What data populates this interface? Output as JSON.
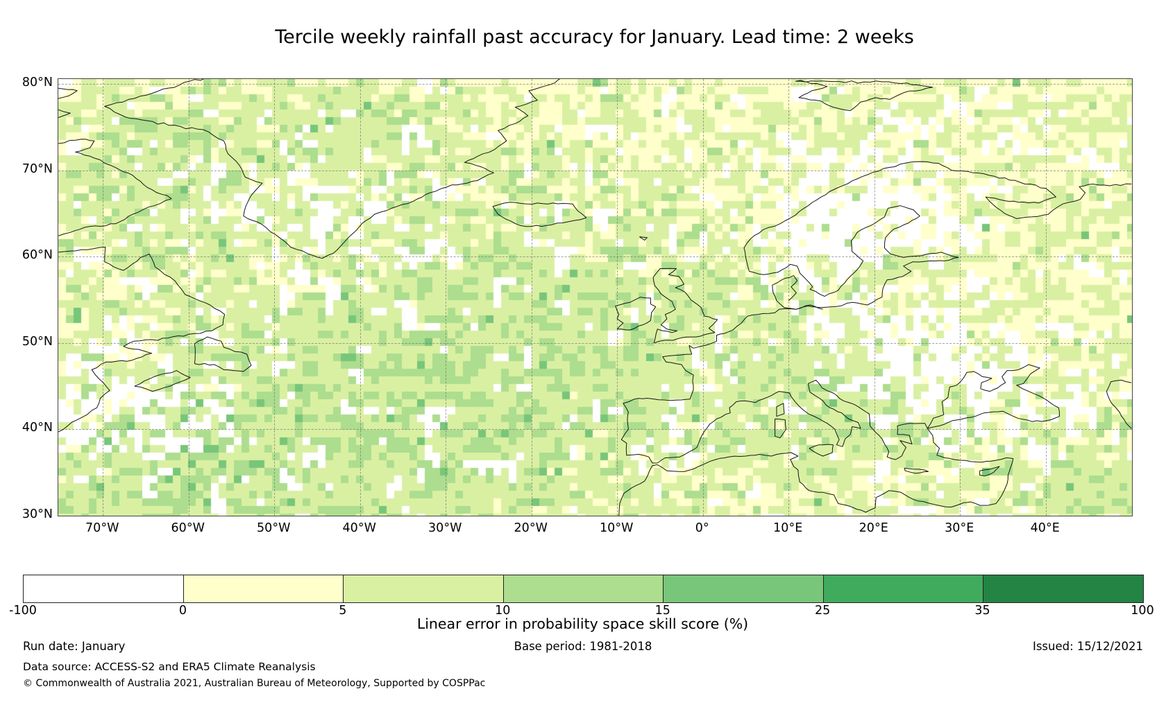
{
  "title": "Tercile weekly rainfall past accuracy for January. Lead time: 2 weeks",
  "map": {
    "lat_labels": [
      "80°N",
      "70°N",
      "60°N",
      "50°N",
      "40°N",
      "30°N"
    ],
    "lon_labels": [
      "70°W",
      "60°W",
      "50°W",
      "40°W",
      "30°W",
      "20°W",
      "10°W",
      "0°",
      "10°E",
      "20°E",
      "30°E",
      "40°E"
    ]
  },
  "raster_palette": {
    "white": "#ffffff",
    "pale_yellow": "#ffffcc",
    "yellow_green": "#d9f0a3",
    "light_green": "#addd8e",
    "medium_green": "#78c679"
  },
  "colorbar": {
    "ticks": [
      "-100",
      "0",
      "5",
      "10",
      "15",
      "25",
      "35",
      "100"
    ],
    "segment_colors": [
      "#ffffff",
      "#ffffcc",
      "#d9f0a3",
      "#addd8e",
      "#78c679",
      "#41ab5d",
      "#238443"
    ],
    "label": "Linear error in probability space skill score (%)"
  },
  "footer": {
    "run_date": "Run date: January",
    "base_period": "Base period: 1981-2018",
    "issued": "Issued: 15/12/2021",
    "data_source": "Data source: ACCESS-S2 and ERA5 Climate Reanalysis",
    "copyright": "© Commonwealth of Australia 2021, Australian Bureau of Meteorology, Supported by COSPPac"
  },
  "chart_data": {
    "type": "heatmap",
    "title": "Tercile weekly rainfall past accuracy for January. Lead time: 2 weeks",
    "geographic_extent": {
      "lon_min": -75,
      "lon_max": 50,
      "lat_min": 30,
      "lat_max": 81
    },
    "x_tick_labels": [
      "70°W",
      "60°W",
      "50°W",
      "40°W",
      "30°W",
      "20°W",
      "10°W",
      "0°",
      "10°E",
      "20°E",
      "30°E",
      "40°E"
    ],
    "y_tick_labels": [
      "80°N",
      "70°N",
      "60°N",
      "50°N",
      "40°N",
      "30°N"
    ],
    "colorbar_bin_edges": [
      -100,
      0,
      5,
      10,
      15,
      25,
      35,
      100
    ],
    "colorbar_bin_colors": [
      "#ffffff",
      "#ffffcc",
      "#d9f0a3",
      "#addd8e",
      "#78c679",
      "#41ab5d",
      "#238443"
    ],
    "colorbar_label": "Linear error in probability space skill score (%)",
    "units": "%",
    "value_summary": "Gridded ~0.9° cells; most cells fall in the 0-5 and 5-10 bins, with 10-15 clusters over the central/SW North Atlantic, Davis Strait, SE Europe and the eastern Mediterranean; scattered negative (white) cells over the Norwegian Sea, eastern Europe, Black Sea and west Atlantic",
    "grid_on": true,
    "legend_position": "bottom"
  }
}
